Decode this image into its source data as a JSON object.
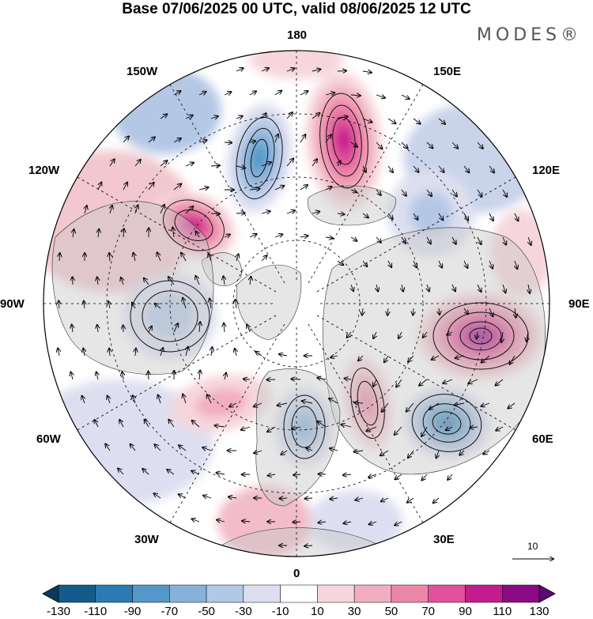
{
  "header": {
    "title": "Base 07/06/2025 00 UTC, valid 08/06/2025 12 UTC",
    "brand": "MODES®"
  },
  "map": {
    "projection": "north polar stereographic",
    "longitude_labels": {
      "top": "180",
      "top_right": "150E",
      "right_upper": "120E",
      "right": "90E",
      "right_lower": "60E",
      "bottom_right": "30E",
      "bottom": "0",
      "bottom_left": "30W",
      "left_lower": "60W",
      "left": "90W",
      "left_upper": "120W",
      "top_left": "150W"
    },
    "reference_vector_label": "10",
    "fill_features": [
      {
        "name": "positive-anomaly-north-pacific",
        "value": 110
      },
      {
        "name": "negative-anomaly-aleutian",
        "value": -90
      },
      {
        "name": "positive-anomaly-alaska",
        "value": 100
      },
      {
        "name": "negative-anomaly-canada",
        "value": -40
      },
      {
        "name": "positive-anomaly-siberia",
        "value": 120
      },
      {
        "name": "negative-anomaly-caspian",
        "value": -100
      },
      {
        "name": "negative-anomaly-scandinavia",
        "value": -70
      },
      {
        "name": "positive-anomaly-barents",
        "value": 60
      },
      {
        "name": "positive-anomaly-atlantic",
        "value": 40
      },
      {
        "name": "negative-anomaly-east-asia",
        "value": -40
      }
    ]
  },
  "colorbar": {
    "ticks": [
      "-130",
      "-110",
      "-90",
      "-70",
      "-50",
      "-30",
      "-10",
      "10",
      "30",
      "50",
      "70",
      "90",
      "110",
      "130"
    ],
    "colors": [
      "#0d3a5c",
      "#135b8a",
      "#2b7bb3",
      "#5398c8",
      "#86b1d8",
      "#b4c8e5",
      "#dddff0",
      "#ffffff",
      "#f6d6dc",
      "#f2aec0",
      "#ec86a8",
      "#e0529a",
      "#c41c8c",
      "#8d0a85",
      "#5a0a73"
    ]
  }
}
